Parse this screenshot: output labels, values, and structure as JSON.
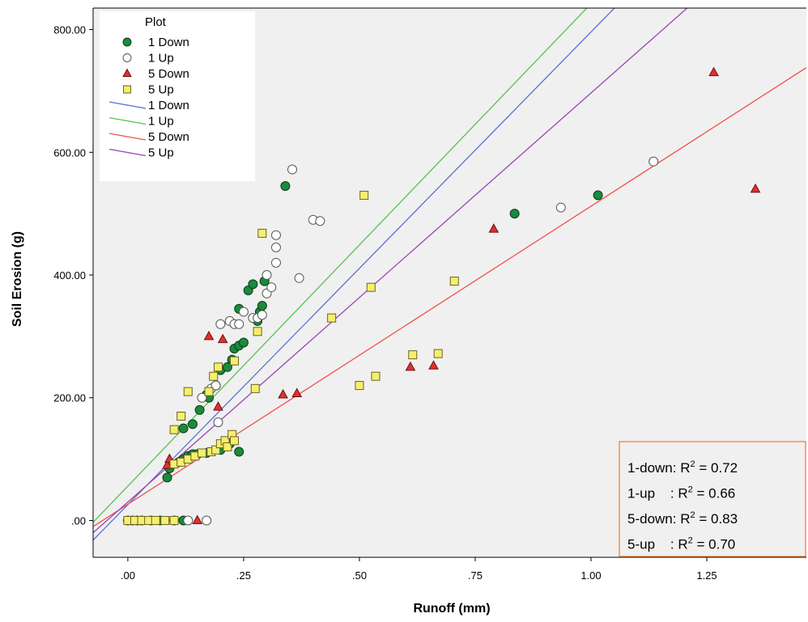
{
  "chart_data": {
    "type": "scatter",
    "xlabel": "Runoff (mm)",
    "ylabel": "Soil Erosion (g)",
    "xlim": [
      -0.075,
      1.465
    ],
    "ylim": [
      -60,
      835
    ],
    "x_ticks": [
      0,
      0.25,
      0.5,
      0.75,
      1.0,
      1.25
    ],
    "x_tick_labels": [
      ".00",
      ".25",
      ".50",
      ".75",
      "1.00",
      "1.25"
    ],
    "y_ticks": [
      0,
      200,
      400,
      600,
      800
    ],
    "y_tick_labels": [
      ".00",
      "200.00",
      "400.00",
      "600.00",
      "800.00"
    ],
    "grid": false,
    "background": "#f0f0f0",
    "legend": {
      "title": "Plot",
      "placement": "top-left",
      "entries": [
        {
          "label": "1 Down",
          "kind": "marker",
          "marker": "circle",
          "fill": "#1a8a3c",
          "stroke": "#0b3d1a"
        },
        {
          "label": "1 Up",
          "kind": "marker",
          "marker": "circle",
          "fill": "#ffffff",
          "stroke": "#555555"
        },
        {
          "label": "5 Down",
          "kind": "marker",
          "marker": "triangle",
          "fill": "#e03030",
          "stroke": "#701010"
        },
        {
          "label": "5 Up",
          "kind": "marker",
          "marker": "square",
          "fill": "#f5ef6e",
          "stroke": "#6b6320"
        },
        {
          "label": "1 Down",
          "kind": "line",
          "color": "#5b6fd0"
        },
        {
          "label": "1 Up",
          "kind": "line",
          "color": "#55c255"
        },
        {
          "label": "5 Down",
          "kind": "line",
          "color": "#f0504a"
        },
        {
          "label": "5 Up",
          "kind": "line",
          "color": "#9a45b0"
        }
      ]
    },
    "r2_annotations": [
      {
        "label": "1-down: R",
        "sup": "2",
        "value": " = 0.72"
      },
      {
        "label": "1-up    : R",
        "sup": "2",
        "value": " = 0.66"
      },
      {
        "label": "5-down: R",
        "sup": "2",
        "value": " = 0.83"
      },
      {
        "label": "5-up    : R",
        "sup": "2",
        "value": " = 0.70"
      }
    ],
    "r2_box_border": "#f07a30",
    "fit_lines": [
      {
        "name": "1 Down",
        "color": "#5b6fd0",
        "x": [
          -0.075,
          1.07
        ],
        "y": [
          -32,
          850
        ]
      },
      {
        "name": "1 Up",
        "color": "#55c255",
        "x": [
          -0.075,
          1.01
        ],
        "y": [
          -3,
          850
        ]
      },
      {
        "name": "5 Down",
        "color": "#f0504a",
        "x": [
          -0.075,
          1.465
        ],
        "y": [
          -10,
          738
        ]
      },
      {
        "name": "5 Up",
        "color": "#9a45b0",
        "x": [
          -0.075,
          1.23
        ],
        "y": [
          -20,
          850
        ]
      }
    ],
    "series": [
      {
        "name": "1 Down",
        "marker": "circle",
        "fill": "#1a8a3c",
        "stroke": "#0b3d1a",
        "points": [
          [
            0,
            0
          ],
          [
            0.01,
            0
          ],
          [
            0.02,
            0
          ],
          [
            0.03,
            0
          ],
          [
            0.05,
            0
          ],
          [
            0.07,
            0
          ],
          [
            0.1,
            0
          ],
          [
            0.12,
            0
          ],
          [
            0.085,
            70
          ],
          [
            0.09,
            85
          ],
          [
            0.11,
            95
          ],
          [
            0.12,
            100
          ],
          [
            0.13,
            105
          ],
          [
            0.14,
            108
          ],
          [
            0.15,
            108
          ],
          [
            0.17,
            110
          ],
          [
            0.2,
            115
          ],
          [
            0.22,
            125
          ],
          [
            0.24,
            112
          ],
          [
            0.12,
            150
          ],
          [
            0.14,
            157
          ],
          [
            0.155,
            180
          ],
          [
            0.17,
            205
          ],
          [
            0.175,
            200
          ],
          [
            0.19,
            220
          ],
          [
            0.2,
            245
          ],
          [
            0.215,
            250
          ],
          [
            0.225,
            262
          ],
          [
            0.23,
            280
          ],
          [
            0.24,
            285
          ],
          [
            0.25,
            290
          ],
          [
            0.24,
            345
          ],
          [
            0.26,
            375
          ],
          [
            0.27,
            385
          ],
          [
            0.28,
            325
          ],
          [
            0.285,
            340
          ],
          [
            0.29,
            350
          ],
          [
            0.295,
            390
          ],
          [
            0.34,
            545
          ],
          [
            0.835,
            500
          ],
          [
            1.015,
            530
          ]
        ]
      },
      {
        "name": "1 Up",
        "marker": "circle",
        "fill": "#ffffff",
        "stroke": "#555555",
        "points": [
          [
            0.13,
            0
          ],
          [
            0.17,
            0
          ],
          [
            0.195,
            160
          ],
          [
            0.16,
            200
          ],
          [
            0.18,
            215
          ],
          [
            0.19,
            220
          ],
          [
            0.2,
            320
          ],
          [
            0.22,
            325
          ],
          [
            0.23,
            320
          ],
          [
            0.24,
            320
          ],
          [
            0.25,
            340
          ],
          [
            0.27,
            330
          ],
          [
            0.28,
            330
          ],
          [
            0.29,
            335
          ],
          [
            0.3,
            370
          ],
          [
            0.31,
            380
          ],
          [
            0.3,
            400
          ],
          [
            0.32,
            420
          ],
          [
            0.32,
            445
          ],
          [
            0.32,
            465
          ],
          [
            0.37,
            395
          ],
          [
            0.4,
            490
          ],
          [
            0.415,
            488
          ],
          [
            0.355,
            572
          ],
          [
            0.935,
            510
          ],
          [
            1.135,
            585
          ]
        ]
      },
      {
        "name": "5 Down",
        "marker": "triangle",
        "fill": "#e03030",
        "stroke": "#701010",
        "points": [
          [
            0.15,
            0
          ],
          [
            0.085,
            90
          ],
          [
            0.09,
            100
          ],
          [
            0.175,
            300
          ],
          [
            0.205,
            295
          ],
          [
            0.195,
            185
          ],
          [
            0.335,
            205
          ],
          [
            0.365,
            207
          ],
          [
            0.61,
            250
          ],
          [
            0.66,
            252
          ],
          [
            0.79,
            475
          ],
          [
            1.265,
            730
          ],
          [
            1.355,
            540
          ]
        ]
      },
      {
        "name": "5 Up",
        "marker": "square",
        "fill": "#f5ef6e",
        "stroke": "#6b6320",
        "points": [
          [
            0,
            0
          ],
          [
            0.015,
            0
          ],
          [
            0.03,
            0
          ],
          [
            0.045,
            0
          ],
          [
            0.06,
            0
          ],
          [
            0.08,
            0
          ],
          [
            0.1,
            0
          ],
          [
            0.1,
            92
          ],
          [
            0.115,
            95
          ],
          [
            0.13,
            100
          ],
          [
            0.145,
            105
          ],
          [
            0.16,
            110
          ],
          [
            0.18,
            112
          ],
          [
            0.19,
            115
          ],
          [
            0.2,
            125
          ],
          [
            0.21,
            130
          ],
          [
            0.215,
            120
          ],
          [
            0.225,
            140
          ],
          [
            0.23,
            130
          ],
          [
            0.1,
            148
          ],
          [
            0.115,
            170
          ],
          [
            0.13,
            210
          ],
          [
            0.175,
            210
          ],
          [
            0.185,
            235
          ],
          [
            0.195,
            250
          ],
          [
            0.23,
            260
          ],
          [
            0.275,
            215
          ],
          [
            0.28,
            308
          ],
          [
            0.29,
            468
          ],
          [
            0.44,
            330
          ],
          [
            0.5,
            220
          ],
          [
            0.51,
            530
          ],
          [
            0.525,
            380
          ],
          [
            0.535,
            235
          ],
          [
            0.615,
            270
          ],
          [
            0.67,
            272
          ],
          [
            0.705,
            390
          ]
        ]
      }
    ]
  }
}
